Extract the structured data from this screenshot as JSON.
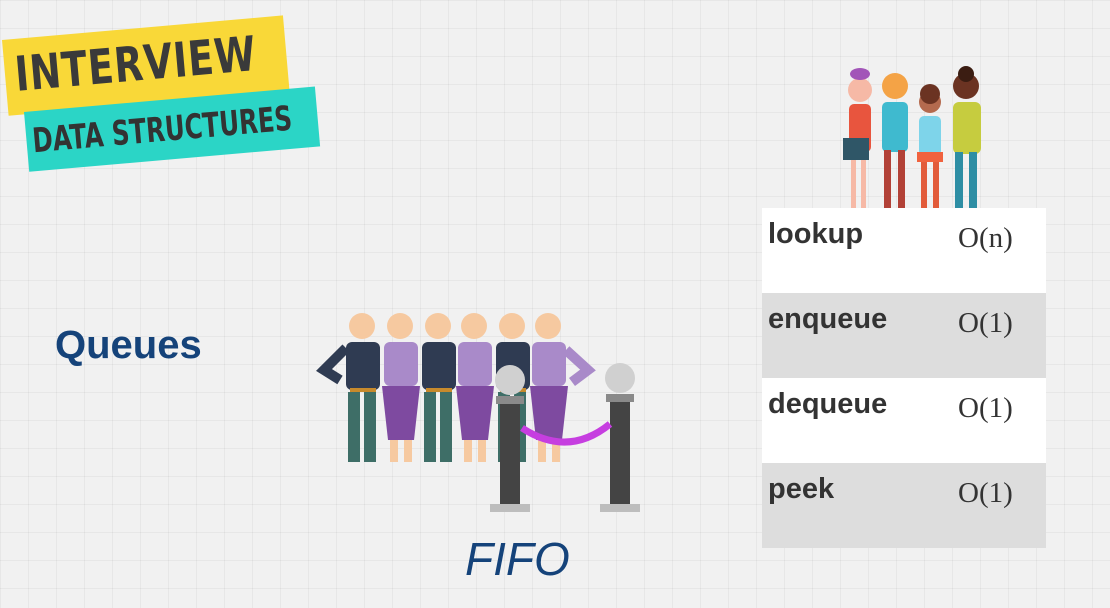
{
  "banner": {
    "line1": "INTERVIEW",
    "line2": "DATA STRUCTURES"
  },
  "title": "Queues",
  "caption": "FIFO",
  "operations": [
    {
      "name": "lookup",
      "complexity": "O(n)"
    },
    {
      "name": "enqueue",
      "complexity": "O(1)"
    },
    {
      "name": "dequeue",
      "complexity": "O(1)"
    },
    {
      "name": "peek",
      "complexity": "O(1)"
    }
  ],
  "colors": {
    "banner_yellow": "#f9d838",
    "banner_teal": "#2bd5c6",
    "title_blue": "#15437a",
    "row_white": "#ffffff",
    "row_gray": "#dddddd"
  }
}
